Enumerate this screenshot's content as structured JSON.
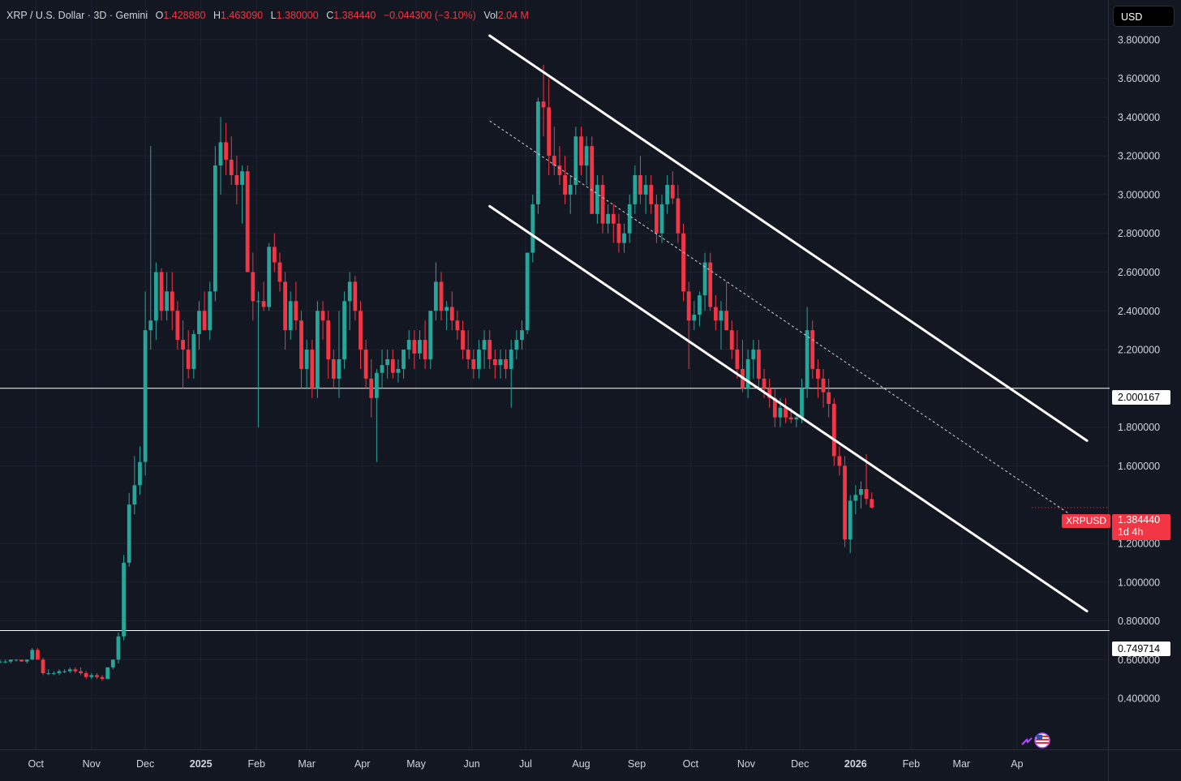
{
  "header": {
    "symbol_title": "XRP / U.S. Dollar · 3D · Gemini",
    "open_label": "O",
    "open_value": "1.428880",
    "high_label": "H",
    "high_value": "1.463090",
    "low_label": "L",
    "low_value": "1.380000",
    "close_label": "C",
    "close_value": "1.384440",
    "change_value": "−0.044300 (−3.10%)",
    "volume_label": "Vol",
    "volume_value": "2.04 M"
  },
  "currency_button": "USD",
  "symbol_tag": "XRPUSD",
  "last_price": {
    "value": "1.384440",
    "countdown": "1d 4h"
  },
  "horizontal_levels": [
    {
      "label": "2.000167",
      "value": 2.000167
    },
    {
      "label": "0.749714",
      "value": 0.749714
    }
  ],
  "colors": {
    "up": "#26a69a",
    "down": "#f23645",
    "background": "#131722",
    "grid": "#1e2230",
    "text": "#d1d4dc",
    "lines": "#ffffff"
  },
  "chart_data": {
    "type": "candlestick",
    "title": "XRP / U.S. Dollar · 3D · Gemini",
    "x_tick_labels": [
      "Oct",
      "Nov",
      "Dec",
      "2025",
      "Feb",
      "Mar",
      "Apr",
      "May",
      "Jun",
      "Jul",
      "Aug",
      "Sep",
      "Oct",
      "Nov",
      "Dec",
      "2026",
      "Feb",
      "Mar",
      "Ap"
    ],
    "y_tick_labels": [
      "3.800000",
      "3.600000",
      "3.400000",
      "3.200000",
      "3.000000",
      "2.800000",
      "2.600000",
      "2.400000",
      "2.200000",
      "1.800000",
      "1.600000",
      "1.200000",
      "1.000000",
      "0.800000",
      "0.600000",
      "0.400000"
    ],
    "y_ticks": [
      3.8,
      3.6,
      3.4,
      3.2,
      3.0,
      2.8,
      2.6,
      2.4,
      2.2,
      1.8,
      1.6,
      1.2,
      1.0,
      0.8,
      0.6,
      0.4
    ],
    "ylim": [
      0.3,
      3.82
    ],
    "x_range_days": [
      -20,
      595
    ],
    "x_unit": "days since 2024-10-01",
    "x_ticks_days": [
      0,
      31,
      61,
      92,
      123,
      151,
      182,
      212,
      243,
      273,
      304,
      335,
      365,
      396,
      426,
      457,
      488,
      516,
      547
    ],
    "candle_interval_days": 3,
    "first_candle_day": -20,
    "ohlc": [
      [
        0.59,
        0.6,
        0.58,
        0.59
      ],
      [
        0.59,
        0.6,
        0.58,
        0.59
      ],
      [
        0.59,
        0.6,
        0.58,
        0.6
      ],
      [
        0.6,
        0.6,
        0.59,
        0.6
      ],
      [
        0.6,
        0.6,
        0.59,
        0.59
      ],
      [
        0.59,
        0.6,
        0.58,
        0.6
      ],
      [
        0.6,
        0.66,
        0.6,
        0.65
      ],
      [
        0.65,
        0.66,
        0.6,
        0.6
      ],
      [
        0.6,
        0.61,
        0.52,
        0.53
      ],
      [
        0.53,
        0.55,
        0.52,
        0.53
      ],
      [
        0.53,
        0.54,
        0.52,
        0.53
      ],
      [
        0.53,
        0.55,
        0.52,
        0.54
      ],
      [
        0.54,
        0.55,
        0.53,
        0.54
      ],
      [
        0.54,
        0.56,
        0.53,
        0.55
      ],
      [
        0.55,
        0.56,
        0.53,
        0.54
      ],
      [
        0.54,
        0.56,
        0.52,
        0.53
      ],
      [
        0.53,
        0.54,
        0.5,
        0.51
      ],
      [
        0.51,
        0.53,
        0.5,
        0.52
      ],
      [
        0.52,
        0.53,
        0.5,
        0.51
      ],
      [
        0.51,
        0.52,
        0.49,
        0.5
      ],
      [
        0.5,
        0.56,
        0.5,
        0.56
      ],
      [
        0.56,
        0.6,
        0.55,
        0.6
      ],
      [
        0.6,
        0.74,
        0.58,
        0.72
      ],
      [
        0.72,
        1.14,
        0.7,
        1.1
      ],
      [
        1.1,
        1.46,
        1.08,
        1.4
      ],
      [
        1.4,
        1.65,
        1.35,
        1.5
      ],
      [
        1.5,
        1.7,
        1.45,
        1.62
      ],
      [
        1.62,
        2.5,
        1.55,
        2.3
      ],
      [
        2.3,
        3.25,
        2.2,
        2.35
      ],
      [
        2.35,
        2.65,
        2.25,
        2.6
      ],
      [
        2.6,
        2.62,
        2.35,
        2.4
      ],
      [
        2.4,
        2.6,
        2.35,
        2.5
      ],
      [
        2.5,
        2.6,
        2.3,
        2.4
      ],
      [
        2.4,
        2.45,
        2.2,
        2.25
      ],
      [
        2.25,
        2.35,
        2.0,
        2.2
      ],
      [
        2.2,
        2.3,
        2.05,
        2.1
      ],
      [
        2.1,
        2.3,
        2.05,
        2.28
      ],
      [
        2.28,
        2.45,
        2.2,
        2.4
      ],
      [
        2.4,
        2.5,
        2.3,
        2.3
      ],
      [
        2.3,
        2.55,
        2.25,
        2.5
      ],
      [
        2.5,
        3.25,
        2.45,
        3.15
      ],
      [
        3.15,
        3.4,
        3.0,
        3.27
      ],
      [
        3.27,
        3.37,
        3.1,
        3.18
      ],
      [
        3.18,
        3.3,
        3.05,
        3.1
      ],
      [
        3.1,
        3.2,
        2.95,
        3.05
      ],
      [
        3.05,
        3.15,
        2.85,
        3.12
      ],
      [
        3.12,
        3.15,
        2.6,
        2.6
      ],
      [
        2.6,
        2.7,
        2.35,
        2.45
      ],
      [
        2.45,
        2.5,
        1.8,
        2.45
      ],
      [
        2.45,
        2.55,
        2.4,
        2.42
      ],
      [
        2.42,
        2.75,
        2.4,
        2.73
      ],
      [
        2.73,
        2.8,
        2.6,
        2.65
      ],
      [
        2.65,
        2.7,
        2.5,
        2.55
      ],
      [
        2.55,
        2.6,
        2.2,
        2.3
      ],
      [
        2.3,
        2.5,
        2.25,
        2.45
      ],
      [
        2.45,
        2.55,
        2.3,
        2.35
      ],
      [
        2.35,
        2.4,
        2.0,
        2.1
      ],
      [
        2.1,
        2.25,
        2.0,
        2.2
      ],
      [
        2.2,
        2.25,
        1.95,
        2.0
      ],
      [
        2.0,
        2.45,
        1.95,
        2.4
      ],
      [
        2.4,
        2.45,
        2.25,
        2.35
      ],
      [
        2.35,
        2.4,
        2.05,
        2.15
      ],
      [
        2.15,
        2.2,
        2.0,
        2.05
      ],
      [
        2.05,
        2.4,
        1.95,
        2.15
      ],
      [
        2.15,
        2.5,
        2.1,
        2.45
      ],
      [
        2.45,
        2.6,
        2.3,
        2.55
      ],
      [
        2.55,
        2.58,
        2.35,
        2.4
      ],
      [
        2.4,
        2.45,
        2.1,
        2.2
      ],
      [
        2.2,
        2.25,
        2.0,
        2.05
      ],
      [
        2.05,
        2.15,
        1.85,
        1.95
      ],
      [
        1.95,
        2.1,
        1.62,
        2.08
      ],
      [
        2.08,
        2.2,
        2.0,
        2.12
      ],
      [
        2.12,
        2.2,
        2.05,
        2.15
      ],
      [
        2.15,
        2.2,
        2.05,
        2.08
      ],
      [
        2.08,
        2.15,
        2.03,
        2.1
      ],
      [
        2.1,
        2.2,
        2.05,
        2.2
      ],
      [
        2.2,
        2.3,
        2.15,
        2.25
      ],
      [
        2.25,
        2.3,
        2.1,
        2.18
      ],
      [
        2.18,
        2.3,
        2.15,
        2.25
      ],
      [
        2.25,
        2.35,
        2.1,
        2.15
      ],
      [
        2.15,
        2.4,
        2.1,
        2.4
      ],
      [
        2.4,
        2.65,
        2.35,
        2.55
      ],
      [
        2.55,
        2.6,
        2.35,
        2.4
      ],
      [
        2.4,
        2.45,
        2.3,
        2.42
      ],
      [
        2.42,
        2.5,
        2.3,
        2.35
      ],
      [
        2.35,
        2.4,
        2.25,
        2.3
      ],
      [
        2.3,
        2.35,
        2.15,
        2.2
      ],
      [
        2.2,
        2.3,
        2.1,
        2.15
      ],
      [
        2.15,
        2.2,
        2.05,
        2.1
      ],
      [
        2.1,
        2.25,
        2.05,
        2.2
      ],
      [
        2.2,
        2.3,
        2.1,
        2.25
      ],
      [
        2.25,
        2.3,
        2.1,
        2.15
      ],
      [
        2.15,
        2.2,
        2.05,
        2.12
      ],
      [
        2.12,
        2.2,
        2.05,
        2.15
      ],
      [
        2.15,
        2.2,
        2.05,
        2.1
      ],
      [
        2.1,
        2.25,
        1.9,
        2.2
      ],
      [
        2.2,
        2.3,
        2.15,
        2.25
      ],
      [
        2.25,
        2.35,
        2.2,
        2.3
      ],
      [
        2.3,
        2.7,
        2.28,
        2.7
      ],
      [
        2.7,
        3.0,
        2.65,
        2.95
      ],
      [
        2.95,
        3.5,
        2.9,
        3.48
      ],
      [
        3.48,
        3.67,
        3.3,
        3.45
      ],
      [
        3.45,
        3.6,
        3.1,
        3.2
      ],
      [
        3.2,
        3.35,
        3.1,
        3.15
      ],
      [
        3.15,
        3.25,
        3.05,
        3.1
      ],
      [
        3.1,
        3.2,
        2.95,
        3.0
      ],
      [
        3.0,
        3.1,
        2.9,
        3.05
      ],
      [
        3.05,
        3.35,
        3.0,
        3.3
      ],
      [
        3.3,
        3.35,
        3.1,
        3.15
      ],
      [
        3.15,
        3.3,
        3.05,
        3.25
      ],
      [
        3.25,
        3.3,
        2.9,
        2.9
      ],
      [
        2.9,
        3.1,
        2.85,
        3.05
      ],
      [
        3.05,
        3.1,
        2.8,
        2.85
      ],
      [
        2.85,
        2.95,
        2.8,
        2.9
      ],
      [
        2.9,
        2.95,
        2.75,
        2.85
      ],
      [
        2.85,
        2.9,
        2.7,
        2.75
      ],
      [
        2.75,
        2.85,
        2.7,
        2.8
      ],
      [
        2.8,
        3.0,
        2.75,
        2.95
      ],
      [
        2.95,
        3.15,
        2.9,
        3.1
      ],
      [
        3.1,
        3.2,
        2.95,
        3.0
      ],
      [
        3.0,
        3.1,
        2.9,
        3.05
      ],
      [
        3.05,
        3.1,
        2.9,
        2.95
      ],
      [
        2.95,
        3.0,
        2.75,
        2.8
      ],
      [
        2.8,
        3.0,
        2.75,
        2.95
      ],
      [
        2.95,
        3.1,
        2.9,
        3.05
      ],
      [
        3.05,
        3.12,
        2.95,
        2.98
      ],
      [
        2.98,
        3.05,
        2.75,
        2.8
      ],
      [
        2.8,
        2.85,
        2.45,
        2.5
      ],
      [
        2.5,
        2.55,
        2.1,
        2.35
      ],
      [
        2.35,
        2.45,
        2.3,
        2.38
      ],
      [
        2.38,
        2.5,
        2.32,
        2.48
      ],
      [
        2.48,
        2.7,
        2.4,
        2.65
      ],
      [
        2.65,
        2.7,
        2.4,
        2.42
      ],
      [
        2.42,
        2.48,
        2.3,
        2.35
      ],
      [
        2.35,
        2.45,
        2.2,
        2.4
      ],
      [
        2.4,
        2.55,
        2.3,
        2.3
      ],
      [
        2.3,
        2.35,
        2.15,
        2.2
      ],
      [
        2.2,
        2.3,
        2.05,
        2.1
      ],
      [
        2.1,
        2.25,
        1.98,
        2.0
      ],
      [
        2.0,
        2.2,
        1.95,
        2.15
      ],
      [
        2.15,
        2.25,
        2.05,
        2.2
      ],
      [
        2.2,
        2.25,
        2.0,
        2.05
      ],
      [
        2.05,
        2.1,
        1.95,
        2.0
      ],
      [
        2.0,
        2.05,
        1.9,
        1.95
      ],
      [
        1.95,
        2.0,
        1.8,
        1.85
      ],
      [
        1.85,
        1.95,
        1.8,
        1.9
      ],
      [
        1.9,
        1.95,
        1.82,
        1.85
      ],
      [
        1.85,
        1.9,
        1.82,
        1.84
      ],
      [
        1.84,
        1.87,
        1.8,
        1.85
      ],
      [
        1.85,
        2.05,
        1.82,
        2.0
      ],
      [
        2.0,
        2.42,
        1.95,
        2.3
      ],
      [
        2.3,
        2.35,
        2.05,
        2.1
      ],
      [
        2.1,
        2.15,
        1.95,
        2.05
      ],
      [
        2.05,
        2.1,
        1.9,
        1.98
      ],
      [
        1.98,
        2.05,
        1.85,
        1.92
      ],
      [
        1.92,
        1.95,
        1.6,
        1.65
      ],
      [
        1.65,
        1.7,
        1.55,
        1.6
      ],
      [
        1.6,
        1.65,
        1.18,
        1.22
      ],
      [
        1.22,
        1.45,
        1.15,
        1.42
      ],
      [
        1.42,
        1.5,
        1.35,
        1.45
      ],
      [
        1.45,
        1.52,
        1.38,
        1.48
      ],
      [
        1.48,
        1.66,
        1.4,
        1.43
      ],
      [
        1.42888,
        1.46309,
        1.38,
        1.38444
      ]
    ],
    "channel": {
      "upper": [
        [
          253,
          3.82
        ],
        [
          586,
          1.73
        ]
      ],
      "lower": [
        [
          253,
          2.94
        ],
        [
          586,
          0.85
        ]
      ],
      "mid_dashed": [
        [
          253,
          3.38
        ],
        [
          586,
          1.29
        ]
      ]
    },
    "hlines": [
      2.000167,
      0.749714
    ],
    "last_close": 1.38444
  }
}
